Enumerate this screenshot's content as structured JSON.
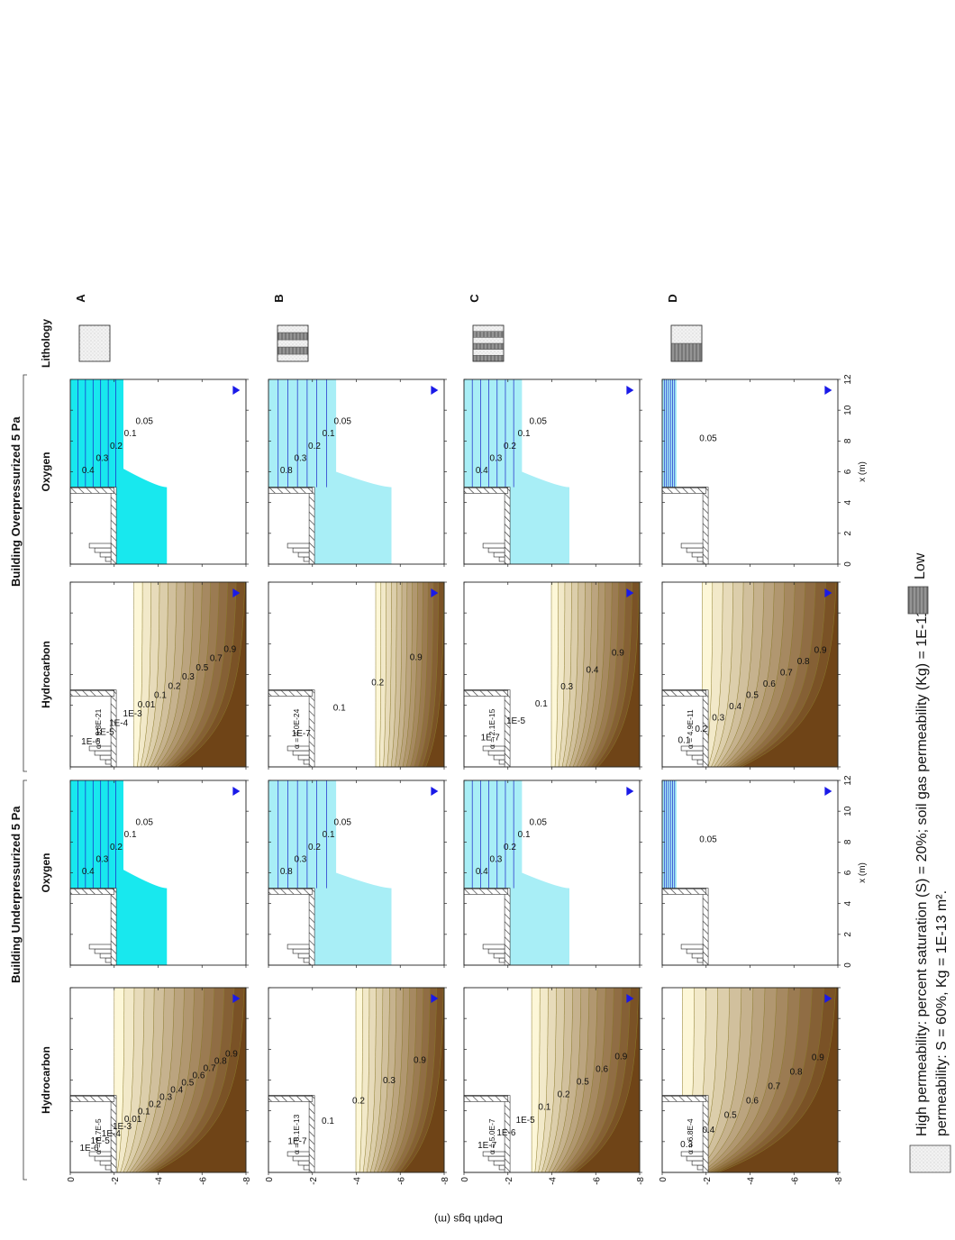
{
  "figure": {
    "group_left": "Building Underpressurized 5 Pa",
    "group_right": "Building Overpressurized 5 Pa",
    "col_titles": [
      "Hydrocarbon",
      "Oxygen",
      "Hydrocarbon",
      "Oxygen",
      "Lithology"
    ],
    "row_letters": [
      "A",
      "B",
      "C",
      "D"
    ],
    "y_axis_label": "Depth bgs (m)",
    "x_axis_label": "x (m)",
    "y_ticks": [
      "0",
      "-2",
      "-4",
      "-6",
      "-8"
    ],
    "x_ticks": [
      "0",
      "2",
      "4",
      "6",
      "8",
      "10",
      "12"
    ],
    "legend_high": "High permeability: percent saturation (S) = 20%; soil gas permeability (Kg) = 1E-11 m²",
    "legend_low_label": "Low",
    "legend_low_detail": "permeability: S = 60%, Kg = 1E-13 m²."
  },
  "colors": {
    "hc_light": "#fdf7d8",
    "hc_dark": "#6f4417",
    "o2": "#18e8ee",
    "o2_line": "#1a24c8",
    "hc_line": "#8a7a2a"
  },
  "chart_data": [
    {
      "type": "contour",
      "title": "Hydrocarbon",
      "row": "A",
      "condition": "underpressurized",
      "alpha": "α = 6.7E-5",
      "labels": [
        "1E-6",
        "1E-5",
        "1E-4",
        "1E-3",
        "0.01",
        "0.1",
        "0.2",
        "0.3",
        "0.4",
        "0.5",
        "0.6",
        "0.7",
        "0.8",
        "0.9"
      ],
      "xlim": [
        0,
        12
      ],
      "ylim": [
        -8,
        0
      ]
    },
    {
      "type": "contour",
      "title": "Oxygen",
      "row": "A",
      "condition": "underpressurized",
      "labels": [
        "0.4",
        "0.3",
        "0.2",
        "0.1",
        "0.05"
      ],
      "xlim": [
        0,
        12
      ],
      "ylim": [
        -8,
        0
      ]
    },
    {
      "type": "contour",
      "title": "Hydrocarbon",
      "row": "A",
      "condition": "overpressurized",
      "alpha": "α = 9.8E-21",
      "labels": [
        "1E-6",
        "1E-5",
        "1E-4",
        "1E-3",
        "0.01",
        "0.1",
        "0.2",
        "0.3",
        "0.5",
        "0.7",
        "0.9"
      ],
      "xlim": [
        0,
        12
      ],
      "ylim": [
        -8,
        0
      ]
    },
    {
      "type": "contour",
      "title": "Oxygen",
      "row": "A",
      "condition": "overpressurized",
      "labels": [
        "0.4",
        "0.3",
        "0.2",
        "0.1",
        "0.05"
      ],
      "xlim": [
        0,
        12
      ],
      "ylim": [
        -8,
        0
      ]
    },
    {
      "type": "contour",
      "title": "Hydrocarbon",
      "row": "B",
      "condition": "underpressurized",
      "alpha": "α = 8.1E-13",
      "labels": [
        "1E-7",
        "0.1",
        "0.2",
        "0.3",
        "0.9"
      ],
      "xlim": [
        0,
        12
      ],
      "ylim": [
        -8,
        0
      ]
    },
    {
      "type": "contour",
      "title": "Oxygen",
      "row": "B",
      "condition": "underpressurized",
      "labels": [
        "0.8",
        "0.3",
        "0.2",
        "0.1",
        "0.05"
      ],
      "xlim": [
        0,
        12
      ],
      "ylim": [
        -8,
        0
      ]
    },
    {
      "type": "contour",
      "title": "Hydrocarbon",
      "row": "B",
      "condition": "overpressurized",
      "alpha": "α = 4.0E-24",
      "labels": [
        "1E-7",
        "0.1",
        "0.2",
        "0.9"
      ],
      "xlim": [
        0,
        12
      ],
      "ylim": [
        -8,
        0
      ]
    },
    {
      "type": "contour",
      "title": "Oxygen",
      "row": "B",
      "condition": "overpressurized",
      "labels": [
        "0.8",
        "0.3",
        "0.2",
        "0.1",
        "0.05"
      ],
      "xlim": [
        0,
        12
      ],
      "ylim": [
        -8,
        0
      ]
    },
    {
      "type": "contour",
      "title": "Hydrocarbon",
      "row": "C",
      "condition": "underpressurized",
      "alpha": "α = 5.0E-7",
      "labels": [
        "1E-7",
        "1E-6",
        "1E-5",
        "0.1",
        "0.2",
        "0.5",
        "0.6",
        "0.9"
      ],
      "xlim": [
        0,
        12
      ],
      "ylim": [
        -8,
        0
      ]
    },
    {
      "type": "contour",
      "title": "Oxygen",
      "row": "C",
      "condition": "underpressurized",
      "labels": [
        "0.4",
        "0.3",
        "0.2",
        "0.1",
        "0.05"
      ],
      "xlim": [
        0,
        12
      ],
      "ylim": [
        -8,
        0
      ]
    },
    {
      "type": "contour",
      "title": "Hydrocarbon",
      "row": "C",
      "condition": "overpressurized",
      "alpha": "α = 2.1E-15",
      "labels": [
        "1E-7",
        "1E-5",
        "0.1",
        "0.3",
        "0.4",
        "0.9"
      ],
      "xlim": [
        0,
        12
      ],
      "ylim": [
        -8,
        0
      ]
    },
    {
      "type": "contour",
      "title": "Oxygen",
      "row": "C",
      "condition": "overpressurized",
      "labels": [
        "0.4",
        "0.3",
        "0.2",
        "0.1",
        "0.05"
      ],
      "xlim": [
        0,
        12
      ],
      "ylim": [
        -8,
        0
      ]
    },
    {
      "type": "contour",
      "title": "Hydrocarbon",
      "row": "D",
      "condition": "underpressurized",
      "alpha": "α = 6.8E-4",
      "labels": [
        "0.3",
        "0.4",
        "0.5",
        "0.6",
        "0.7",
        "0.8",
        "0.9"
      ],
      "xlim": [
        0,
        12
      ],
      "ylim": [
        -8,
        0
      ]
    },
    {
      "type": "contour",
      "title": "Oxygen",
      "row": "D",
      "condition": "underpressurized",
      "labels": [
        "0.05"
      ],
      "xlim": [
        0,
        12
      ],
      "ylim": [
        -8,
        0
      ]
    },
    {
      "type": "contour",
      "title": "Hydrocarbon",
      "row": "D",
      "condition": "overpressurized",
      "alpha": "α = 4.9E-11",
      "labels": [
        "0.1",
        "0.2",
        "0.3",
        "0.4",
        "0.5",
        "0.6",
        "0.7",
        "0.8",
        "0.9"
      ],
      "xlim": [
        0,
        12
      ],
      "ylim": [
        -8,
        0
      ]
    },
    {
      "type": "contour",
      "title": "Oxygen",
      "row": "D",
      "condition": "overpressurized",
      "labels": [
        "0.05"
      ],
      "xlim": [
        0,
        12
      ],
      "ylim": [
        -8,
        0
      ]
    }
  ],
  "lithology": [
    {
      "row": "A",
      "layers": [
        "high"
      ]
    },
    {
      "row": "B",
      "layers": [
        "high",
        "low",
        "high",
        "low",
        "high"
      ]
    },
    {
      "row": "C",
      "layers": [
        "low",
        "high",
        "low",
        "high",
        "low",
        "high"
      ]
    },
    {
      "row": "D",
      "layers": [
        "low",
        "high"
      ]
    }
  ]
}
